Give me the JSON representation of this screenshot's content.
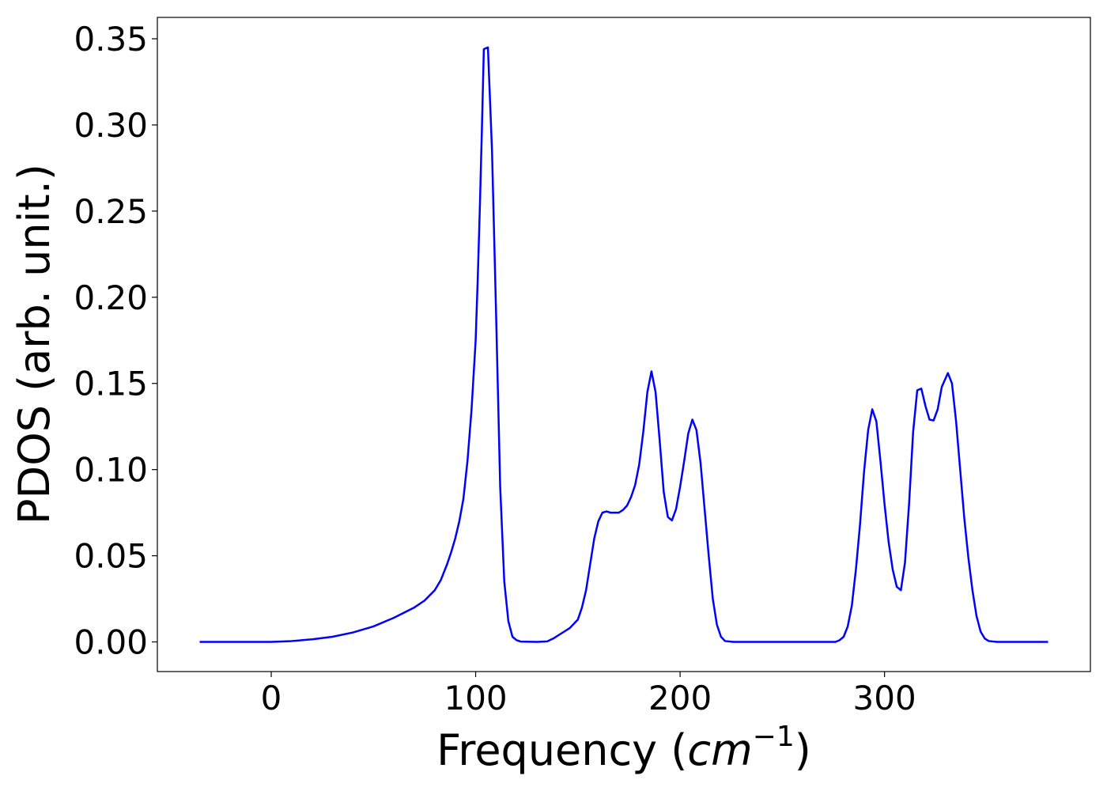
{
  "chart_data": {
    "type": "line",
    "xlabel_parts": [
      "Frequency (",
      "cm",
      "−1",
      ")"
    ],
    "ylabel": "PDOS (arb. unit.)",
    "color": "#0000ff",
    "x": [
      -35,
      -20,
      0,
      10,
      20,
      30,
      40,
      50,
      60,
      70,
      75,
      80,
      83,
      86,
      88,
      90,
      92,
      94,
      96,
      98,
      100,
      101,
      102,
      103,
      104,
      106,
      108,
      110,
      112,
      114,
      116,
      118,
      120,
      122,
      130,
      135,
      138,
      142,
      146,
      150,
      152,
      154,
      156,
      158,
      160,
      162,
      164,
      166,
      170,
      172,
      174,
      176,
      178,
      180,
      182,
      184,
      186,
      188,
      190,
      192,
      194,
      196,
      198,
      200,
      202,
      204,
      206,
      208,
      210,
      212,
      214,
      216,
      218,
      220,
      222,
      226,
      240,
      260,
      276,
      278,
      280,
      282,
      284,
      286,
      288,
      290,
      292,
      294,
      296,
      298,
      300,
      302,
      304,
      306,
      308,
      310,
      312,
      314,
      316,
      318,
      320,
      322,
      324,
      326,
      328,
      331,
      333,
      335,
      337,
      339,
      341,
      343,
      345,
      347,
      349,
      351,
      355,
      380
    ],
    "values": [
      0,
      0,
      0,
      0.0005,
      0.0015,
      0.003,
      0.0055,
      0.009,
      0.014,
      0.02,
      0.024,
      0.03,
      0.036,
      0.045,
      0.052,
      0.06,
      0.07,
      0.083,
      0.105,
      0.135,
      0.175,
      0.21,
      0.25,
      0.295,
      0.344,
      0.345,
      0.285,
      0.19,
      0.09,
      0.035,
      0.012,
      0.003,
      0.001,
      0.0002,
      0,
      0.0003,
      0.002,
      0.005,
      0.008,
      0.013,
      0.02,
      0.03,
      0.045,
      0.06,
      0.07,
      0.075,
      0.0757,
      0.075,
      0.075,
      0.0765,
      0.079,
      0.084,
      0.091,
      0.103,
      0.122,
      0.145,
      0.157,
      0.145,
      0.117,
      0.087,
      0.0725,
      0.0705,
      0.077,
      0.09,
      0.105,
      0.121,
      0.129,
      0.123,
      0.104,
      0.077,
      0.05,
      0.025,
      0.01,
      0.003,
      0.0005,
      0,
      0,
      0,
      0,
      0.001,
      0.003,
      0.009,
      0.021,
      0.042,
      0.068,
      0.099,
      0.123,
      0.135,
      0.128,
      0.105,
      0.08,
      0.058,
      0.042,
      0.032,
      0.03,
      0.046,
      0.08,
      0.122,
      0.146,
      0.147,
      0.137,
      0.129,
      0.1285,
      0.135,
      0.148,
      0.156,
      0.15,
      0.128,
      0.1,
      0.072,
      0.049,
      0.03,
      0.015,
      0.006,
      0.002,
      0.0005,
      0,
      0
    ],
    "xlim": [
      -55.7,
      400.7
    ],
    "ylim": [
      -0.0172,
      0.3624
    ],
    "xticks": [
      0,
      100,
      200,
      300
    ],
    "yticks": [
      {
        "value": 0,
        "label": "0.00"
      },
      0.05,
      {
        "value": 0.1,
        "label": "0.10"
      },
      0.15,
      {
        "value": 0.2,
        "label": "0.20"
      },
      0.25,
      {
        "value": 0.3,
        "label": "0.30"
      },
      0.35
    ]
  }
}
